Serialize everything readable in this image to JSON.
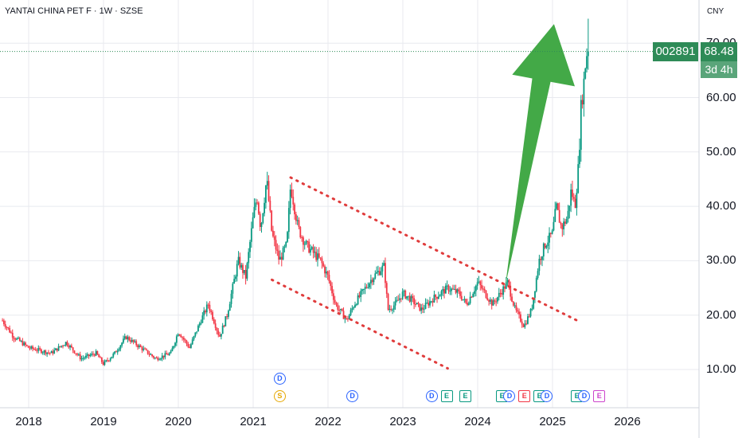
{
  "header": {
    "title": "YANTAI CHINA PET F · 1W · SZSE",
    "currency": "CNY"
  },
  "price_tag": {
    "symbol": "002891",
    "price": "68.48",
    "countdown": "3d 4h"
  },
  "colors": {
    "up": "#089981",
    "down": "#f23645",
    "tag": "#2e8b57",
    "trendline": "#e03c3c",
    "arrow": "#43a947",
    "grid": "#e8eaef"
  },
  "events": [
    {
      "letter": "D",
      "color": "#2962ff",
      "type": "dividend",
      "year": 2021.35,
      "row": 1
    },
    {
      "letter": "S",
      "color": "#e6a700",
      "type": "split",
      "year": 2021.35,
      "row": 2
    },
    {
      "letter": "D",
      "color": "#2962ff",
      "type": "dividend",
      "year": 2022.32,
      "row": 2
    },
    {
      "letter": "D",
      "color": "#2962ff",
      "type": "dividend",
      "year": 2023.38,
      "row": 2
    },
    {
      "letter": "E",
      "color": "#089981",
      "type": "earnings",
      "year": 2023.58,
      "row": 2
    },
    {
      "letter": "E",
      "color": "#089981",
      "type": "earnings",
      "year": 2023.83,
      "row": 2
    },
    {
      "letter": "E",
      "color": "#089981",
      "type": "earnings",
      "year": 2024.32,
      "row": 2
    },
    {
      "letter": "D",
      "color": "#2962ff",
      "type": "dividend",
      "year": 2024.42,
      "row": 2
    },
    {
      "letter": "E",
      "color": "#f23645",
      "type": "earnings",
      "year": 2024.62,
      "row": 2
    },
    {
      "letter": "E",
      "color": "#089981",
      "type": "earnings",
      "year": 2024.82,
      "row": 2
    },
    {
      "letter": "D",
      "color": "#2962ff",
      "type": "dividend",
      "year": 2024.92,
      "row": 2
    },
    {
      "letter": "E",
      "color": "#089981",
      "type": "earnings",
      "year": 2025.32,
      "row": 2
    },
    {
      "letter": "D",
      "color": "#2962ff",
      "type": "dividend",
      "year": 2025.42,
      "row": 2
    },
    {
      "letter": "E",
      "color": "#cc44cc",
      "type": "earnings",
      "year": 2025.62,
      "row": 2
    }
  ],
  "chart_data": {
    "type": "candlestick",
    "interval": "1W",
    "x_axis": {
      "ticks": [
        "2018",
        "2019",
        "2020",
        "2021",
        "2022",
        "2023",
        "2024",
        "2025",
        "2026"
      ],
      "range": [
        2017.65,
        2026.9
      ]
    },
    "y_axis": {
      "ticks": [
        "10.00",
        "20.00",
        "30.00",
        "40.00",
        "50.00",
        "60.00",
        "70.00"
      ],
      "range": [
        2.5,
        76.5
      ]
    },
    "anchors": [
      [
        2017.65,
        19
      ],
      [
        2017.8,
        16
      ],
      [
        2018.0,
        14
      ],
      [
        2018.3,
        13
      ],
      [
        2018.5,
        15
      ],
      [
        2018.7,
        12
      ],
      [
        2018.9,
        13
      ],
      [
        2019.0,
        11
      ],
      [
        2019.15,
        13
      ],
      [
        2019.3,
        16
      ],
      [
        2019.5,
        14
      ],
      [
        2019.7,
        12
      ],
      [
        2019.9,
        13
      ],
      [
        2020.0,
        17
      ],
      [
        2020.15,
        14
      ],
      [
        2020.3,
        19
      ],
      [
        2020.4,
        22
      ],
      [
        2020.55,
        16
      ],
      [
        2020.65,
        20
      ],
      [
        2020.8,
        30
      ],
      [
        2020.9,
        27
      ],
      [
        2021.0,
        38
      ],
      [
        2021.05,
        42
      ],
      [
        2021.1,
        36
      ],
      [
        2021.18,
        45
      ],
      [
        2021.25,
        35
      ],
      [
        2021.35,
        30
      ],
      [
        2021.45,
        33
      ],
      [
        2021.5,
        44
      ],
      [
        2021.6,
        36
      ],
      [
        2021.7,
        33
      ],
      [
        2021.9,
        30
      ],
      [
        2022.0,
        27
      ],
      [
        2022.1,
        22
      ],
      [
        2022.25,
        19
      ],
      [
        2022.35,
        22
      ],
      [
        2022.5,
        25
      ],
      [
        2022.6,
        27
      ],
      [
        2022.75,
        29
      ],
      [
        2022.8,
        21
      ],
      [
        2022.9,
        22
      ],
      [
        2023.0,
        24
      ],
      [
        2023.1,
        23
      ],
      [
        2023.25,
        21
      ],
      [
        2023.4,
        23
      ],
      [
        2023.6,
        25
      ],
      [
        2023.75,
        24
      ],
      [
        2023.85,
        22
      ],
      [
        2024.0,
        26
      ],
      [
        2024.1,
        24
      ],
      [
        2024.2,
        22
      ],
      [
        2024.3,
        24
      ],
      [
        2024.4,
        26
      ],
      [
        2024.5,
        21
      ],
      [
        2024.62,
        18
      ],
      [
        2024.72,
        21
      ],
      [
        2024.82,
        30
      ],
      [
        2024.9,
        33
      ],
      [
        2025.0,
        35
      ],
      [
        2025.05,
        40
      ],
      [
        2025.12,
        36
      ],
      [
        2025.2,
        38
      ],
      [
        2025.25,
        43
      ],
      [
        2025.3,
        40
      ],
      [
        2025.35,
        48
      ],
      [
        2025.38,
        58
      ],
      [
        2025.42,
        63
      ],
      [
        2025.45,
        68
      ],
      [
        2025.48,
        68.48
      ]
    ],
    "last_close": 68.48,
    "period_high": 74.5,
    "drawings": [
      {
        "type": "trendline",
        "style": "dotted",
        "from": [
          2021.5,
          45.3
        ],
        "to": [
          2025.33,
          19.0
        ]
      },
      {
        "type": "trendline",
        "style": "dotted",
        "from": [
          2021.25,
          26.5
        ],
        "to": [
          2023.6,
          10.2
        ]
      },
      {
        "type": "arrow",
        "from": [
          2024.37,
          25.5
        ],
        "to": [
          2025.02,
          73.5
        ]
      }
    ]
  }
}
